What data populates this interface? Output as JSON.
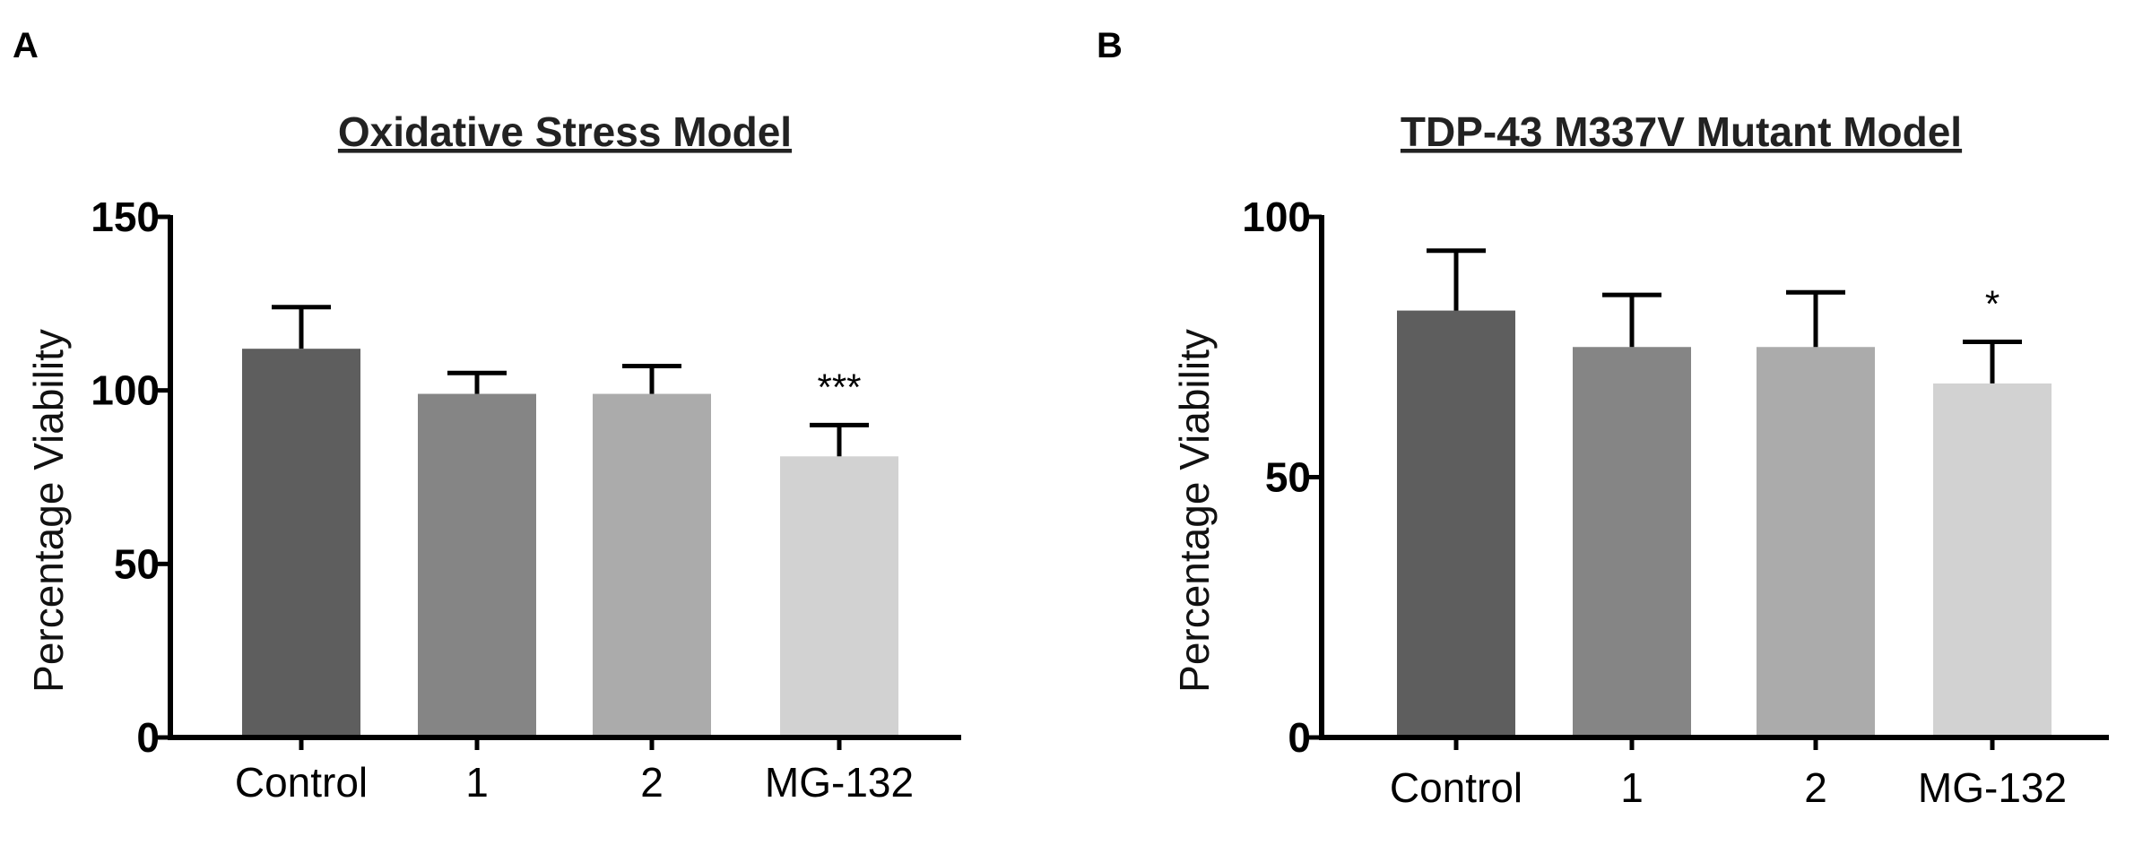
{
  "chart_data": [
    {
      "panel": "A",
      "type": "bar",
      "title": "Oxidative Stress Model",
      "xlabel": "",
      "ylabel": "Percentage Viability",
      "ylim": [
        0,
        150
      ],
      "yticks": [
        0,
        50,
        100,
        150
      ],
      "categories": [
        "Control",
        "1",
        "2",
        "MG-132"
      ],
      "values": [
        112,
        99,
        99,
        81
      ],
      "errors": [
        12,
        6,
        8,
        9
      ],
      "colors": [
        "#5e5e5e",
        "#858585",
        "#ababab",
        "#d2d2d2"
      ],
      "annotations": [
        "",
        "",
        "",
        "***"
      ]
    },
    {
      "panel": "B",
      "type": "bar",
      "title": "TDP-43 M337V Mutant Model",
      "xlabel": "",
      "ylabel": "Percentage Viability",
      "ylim": [
        0,
        100
      ],
      "yticks": [
        0,
        50,
        100
      ],
      "categories": [
        "Control",
        "1",
        "2",
        "MG-132"
      ],
      "values": [
        82,
        75,
        75,
        68
      ],
      "errors": [
        11.5,
        10,
        10.5,
        8
      ],
      "colors": [
        "#5e5e5e",
        "#858585",
        "#ababab",
        "#d2d2d2"
      ],
      "annotations": [
        "",
        "",
        "",
        "*"
      ]
    }
  ]
}
